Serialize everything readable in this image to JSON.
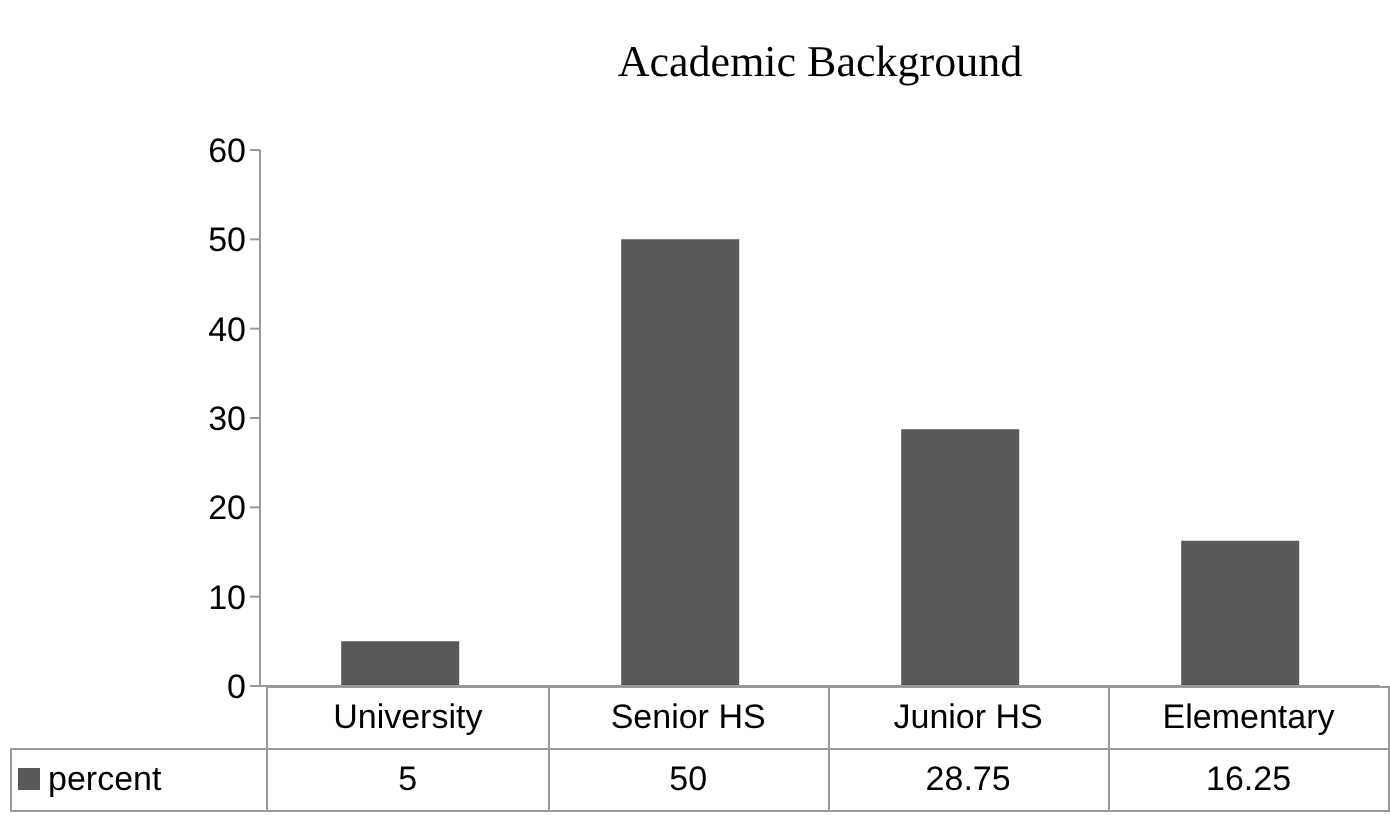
{
  "chart_data": {
    "type": "bar",
    "title": "Academic Background",
    "categories": [
      "University",
      "Senior HS",
      "Junior HS",
      "Elementary"
    ],
    "series": [
      {
        "name": "percent",
        "color": "#595959",
        "values": [
          5,
          50,
          28.75,
          16.25
        ]
      }
    ],
    "ylim": [
      0,
      60
    ],
    "yticks": [
      0,
      10,
      20,
      30,
      40,
      50,
      60
    ],
    "legend": "bottom",
    "data_labels": true
  }
}
